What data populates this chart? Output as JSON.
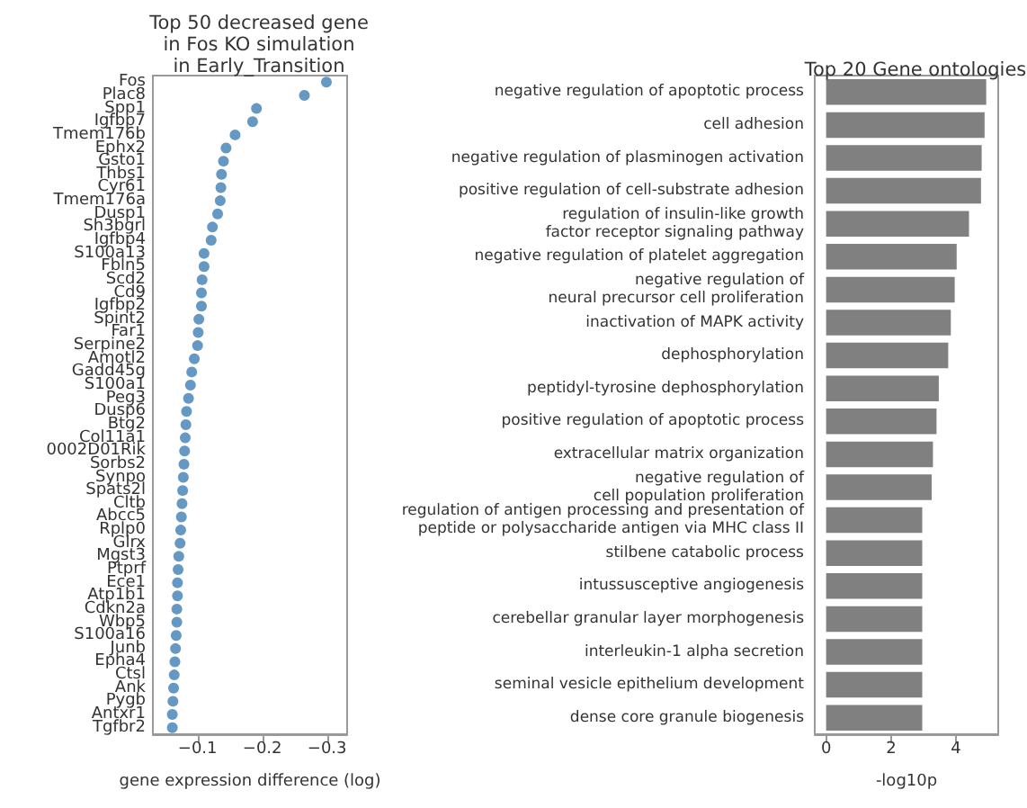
{
  "chart_data": [
    {
      "type": "scatter",
      "title": "Top 50 decreased gene\nin Fos KO simulation\nin Early_Transition",
      "xlabel": "gene expression difference (log)",
      "orientation": "horizontal",
      "marker": "circle",
      "color": "#3f7fb5",
      "categories": [
        "Fos",
        "Plac8",
        "Spp1",
        "Igfbp7",
        "Tmem176b",
        "Ephx2",
        "Gsto1",
        "Thbs1",
        "Cyr61",
        "Tmem176a",
        "Dusp1",
        "Sh3bgrl",
        "Igfbp4",
        "S100a13",
        "Fbln5",
        "Scd2",
        "Cd9",
        "Igfbp2",
        "Spint2",
        "Far1",
        "Serpine2",
        "Amotl2",
        "Gadd45g",
        "S100a1",
        "Peg3",
        "Dusp6",
        "Btg2",
        "Col11a1",
        "0002D01Rik",
        "Sorbs2",
        "Synpo",
        "Spats2l",
        "Cltb",
        "Abcc5",
        "Rplp0",
        "Glrx",
        "Mgst3",
        "Ptprf",
        "Ece1",
        "Atp1b1",
        "Cdkn2a",
        "Wbp5",
        "S100a16",
        "Junb",
        "Epha4",
        "Ctsl",
        "Ank",
        "Pygb",
        "Antxr1",
        "Tgfbr2"
      ],
      "values": [
        -0.299,
        -0.265,
        -0.191,
        -0.185,
        -0.158,
        -0.144,
        -0.14,
        -0.137,
        -0.136,
        -0.135,
        -0.131,
        -0.123,
        -0.121,
        -0.11,
        -0.11,
        -0.107,
        -0.106,
        -0.106,
        -0.102,
        -0.101,
        -0.1,
        -0.095,
        -0.091,
        -0.089,
        -0.086,
        -0.083,
        -0.082,
        -0.081,
        -0.08,
        -0.079,
        -0.078,
        -0.077,
        -0.076,
        -0.075,
        -0.074,
        -0.073,
        -0.071,
        -0.07,
        -0.069,
        -0.069,
        -0.068,
        -0.068,
        -0.067,
        -0.066,
        -0.065,
        -0.064,
        -0.063,
        -0.062,
        -0.061,
        -0.061
      ],
      "xlim": [
        -0.031,
        -0.331
      ],
      "xticks": [
        {
          "value": -0.1,
          "label": "−0.1"
        },
        {
          "value": -0.2,
          "label": "−0.2"
        },
        {
          "value": -0.3,
          "label": "−0.3"
        }
      ]
    },
    {
      "type": "bar",
      "title": "Top 20 Gene ontologies",
      "xlabel": "-log10p",
      "orientation": "horizontal",
      "color": "#808080",
      "categories": [
        "negative regulation of apoptotic process",
        "cell adhesion",
        "negative regulation of plasminogen activation",
        "positive regulation of cell-substrate adhesion",
        "regulation of insulin-like growth\nfactor receptor signaling pathway",
        "negative regulation of platelet aggregation",
        "negative regulation of\nneural precursor cell proliferation",
        "inactivation of MAPK activity",
        "dephosphorylation",
        "peptidyl-tyrosine dephosphorylation",
        "positive regulation of apoptotic process",
        "extracellular matrix organization",
        "negative regulation of\ncell population proliferation",
        "regulation of antigen processing and presentation of\npeptide or polysaccharide antigen via MHC class II",
        "stilbene catabolic process",
        "intussusceptive angiogenesis",
        "cerebellar granular layer morphogenesis",
        "interleukin-1 alpha secretion",
        "seminal vesicle epithelium development",
        "dense core granule biogenesis"
      ],
      "values": [
        4.93,
        4.88,
        4.79,
        4.77,
        4.4,
        4.02,
        3.96,
        3.84,
        3.76,
        3.47,
        3.4,
        3.29,
        3.25,
        2.96,
        2.96,
        2.96,
        2.96,
        2.96,
        2.96,
        2.96
      ],
      "xlim": [
        -0.35,
        5.3
      ],
      "xticks": [
        0,
        2,
        4
      ]
    }
  ]
}
